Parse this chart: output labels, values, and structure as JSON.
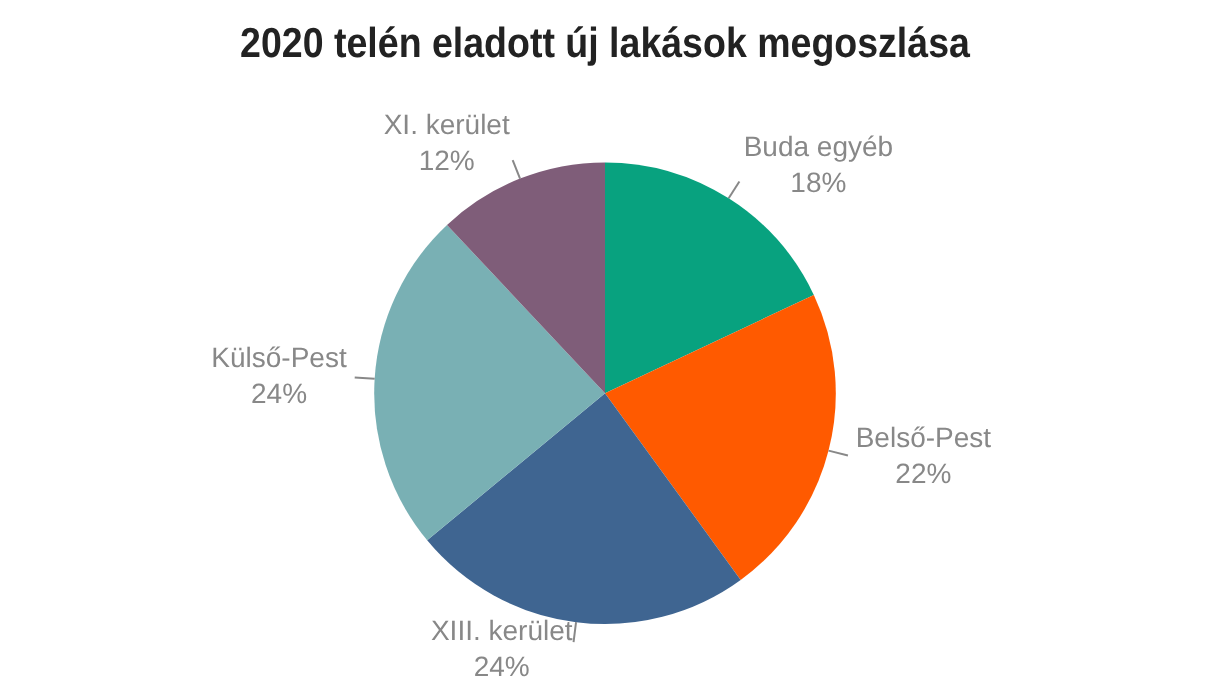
{
  "chart_data": {
    "type": "pie",
    "title": "2020 telén eladott új lakások megoszlása",
    "categories": [
      "Buda egyéb",
      "Belső-Pest",
      "XIII. kerület",
      "Külső-Pest",
      "XI. kerület"
    ],
    "values": [
      18,
      22,
      24,
      24,
      12
    ],
    "value_labels": [
      "18%",
      "22%",
      "24%",
      "24%",
      "12%"
    ],
    "colors": [
      "#08a27f",
      "#ff5a00",
      "#3f6591",
      "#79b0b4",
      "#7f5d79"
    ],
    "legend": false
  }
}
